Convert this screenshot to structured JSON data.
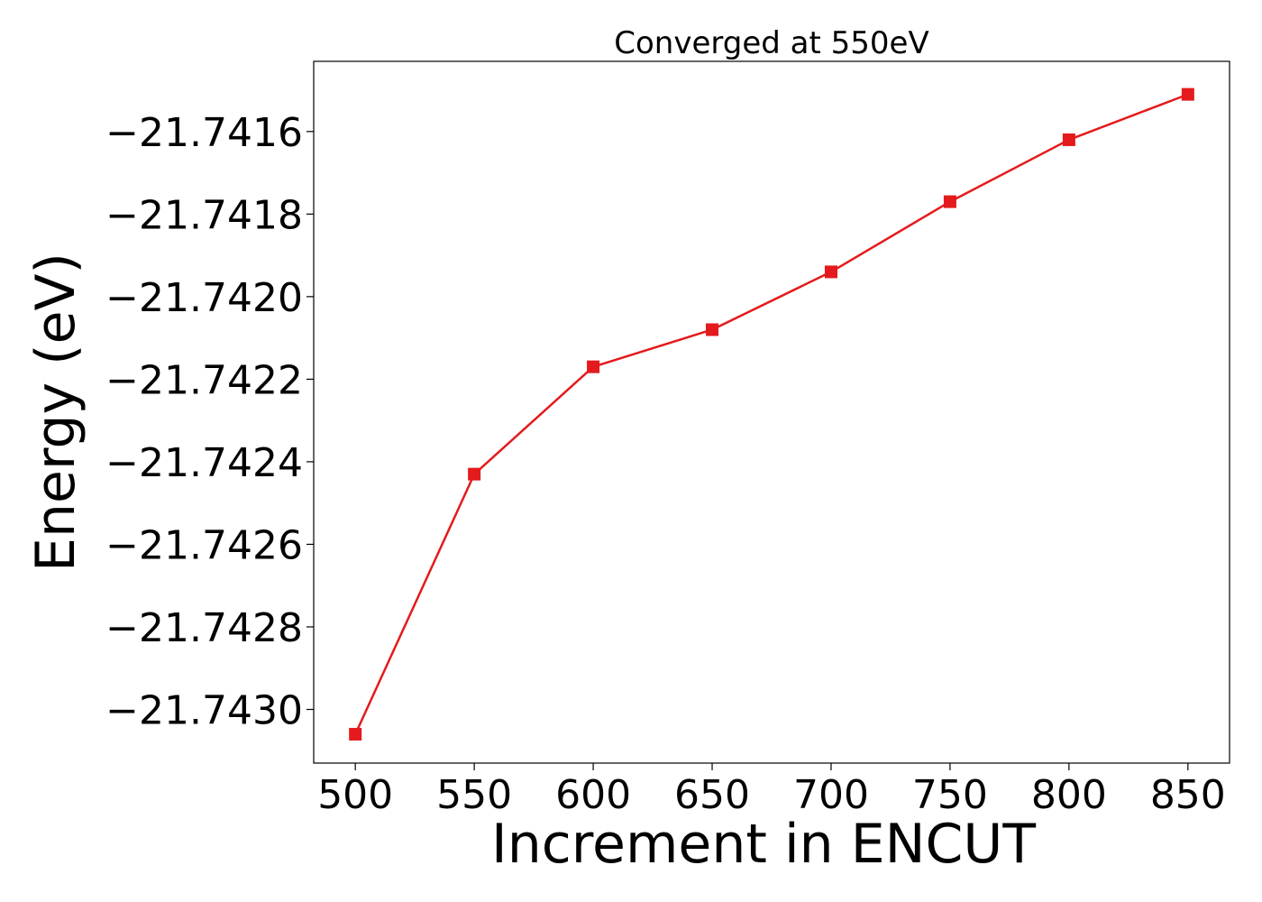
{
  "chart_data": {
    "type": "line",
    "title": "Converged at 550eV",
    "xlabel": "Increment in ENCUT",
    "ylabel": "Energy (eV)",
    "x": [
      500,
      550,
      600,
      650,
      700,
      750,
      800,
      850
    ],
    "series": [
      {
        "values": [
          -21.74306,
          -21.74243,
          -21.74217,
          -21.74208,
          -21.74194,
          -21.74177,
          -21.74162,
          -21.74151
        ],
        "color": "#e41a1c",
        "marker": "square"
      }
    ],
    "xticks": [
      500,
      550,
      600,
      650,
      700,
      750,
      800,
      850
    ],
    "xtick_labels": [
      "500",
      "550",
      "600",
      "650",
      "700",
      "750",
      "800",
      "850"
    ],
    "yticks": [
      -21.743,
      -21.7428,
      -21.7426,
      -21.7424,
      -21.7422,
      -21.742,
      -21.7418,
      -21.7416
    ],
    "ytick_labels": [
      "−21.7430",
      "−21.7428",
      "−21.7426",
      "−21.7424",
      "−21.7422",
      "−21.7420",
      "−21.7418",
      "−21.7416"
    ],
    "xlim": [
      482.5,
      867.5
    ],
    "ylim": [
      -21.74313,
      -21.74143
    ],
    "grid": false,
    "legend": "none"
  }
}
